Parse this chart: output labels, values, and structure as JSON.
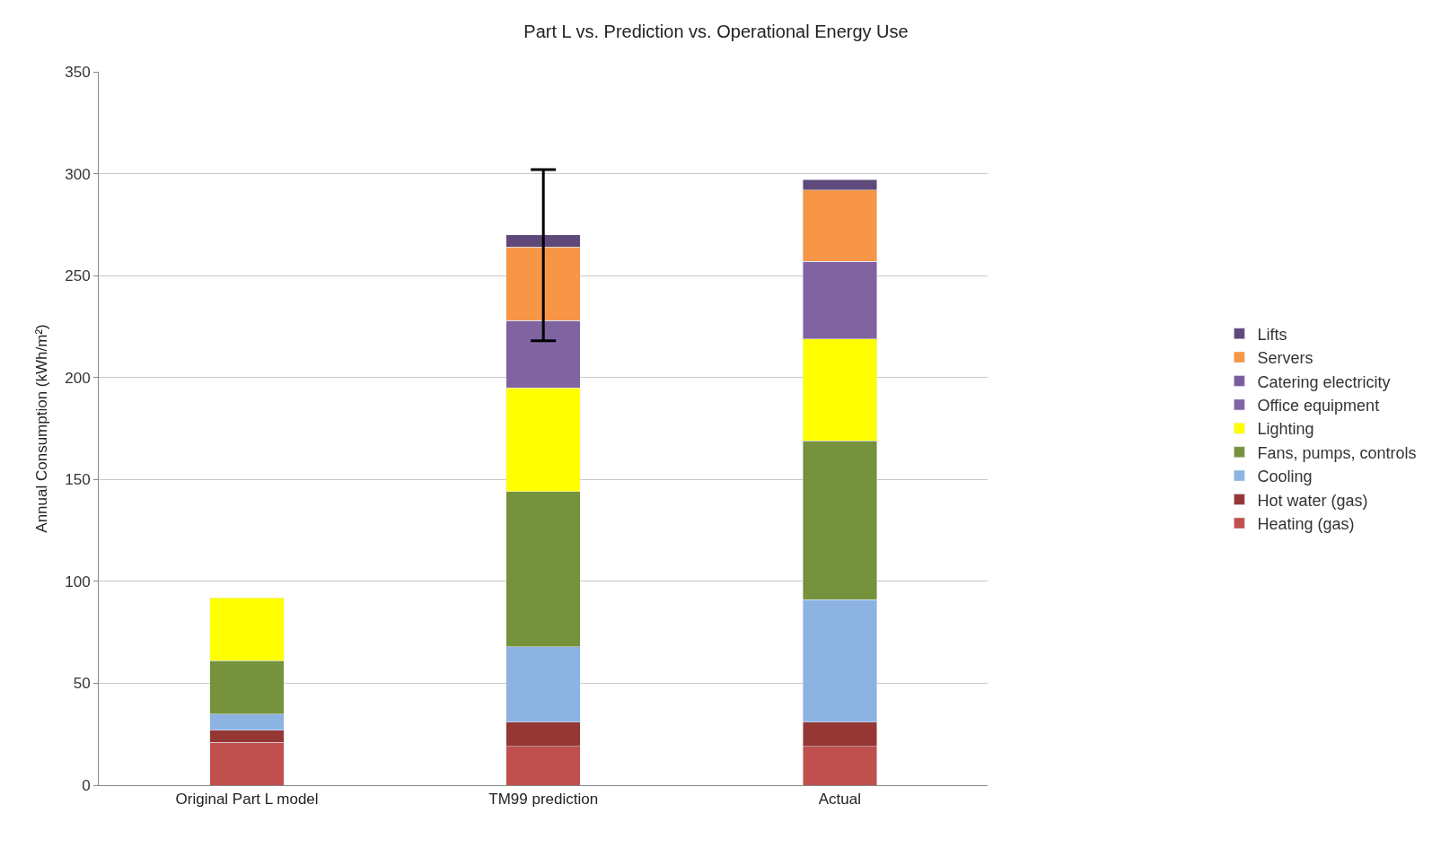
{
  "chart_data": {
    "type": "bar",
    "stacked": true,
    "title": "Part L vs. Prediction vs. Operational Energy Use",
    "ylabel": "Annual Consumption (kWh/m²)",
    "categories": [
      "Original Part L model",
      "TM99 prediction",
      "Actual"
    ],
    "series": [
      {
        "name": "Heating (gas)",
        "color": "#c0504d",
        "values": [
          21,
          19,
          19
        ]
      },
      {
        "name": "Hot water (gas)",
        "color": "#953735",
        "values": [
          6,
          12,
          12
        ]
      },
      {
        "name": "Cooling",
        "color": "#8db3e2",
        "values": [
          8,
          37,
          60
        ]
      },
      {
        "name": "Fans, pumps, controls",
        "color": "#76923c",
        "values": [
          26,
          76,
          78
        ]
      },
      {
        "name": "Lighting",
        "color": "#ffff00",
        "values": [
          31,
          51,
          50
        ]
      },
      {
        "name": "Office equipment",
        "color": "#8064a2",
        "values": [
          null,
          33,
          38
        ]
      },
      {
        "name": "Catering electricity",
        "color": "#7a5c9e",
        "values": [
          null,
          0,
          0
        ]
      },
      {
        "name": "Servers",
        "color": "#f79646",
        "values": [
          null,
          36,
          35
        ]
      },
      {
        "name": "Lifts",
        "color": "#5f497a",
        "values": [
          null,
          6,
          5
        ],
        "errors": [
          null,
          [
            218,
            302
          ],
          null
        ]
      }
    ],
    "ylim": [
      0,
      350
    ],
    "yticks": [
      0,
      50,
      100,
      150,
      200,
      250,
      300,
      350
    ],
    "grid": "y",
    "legend": "right"
  }
}
